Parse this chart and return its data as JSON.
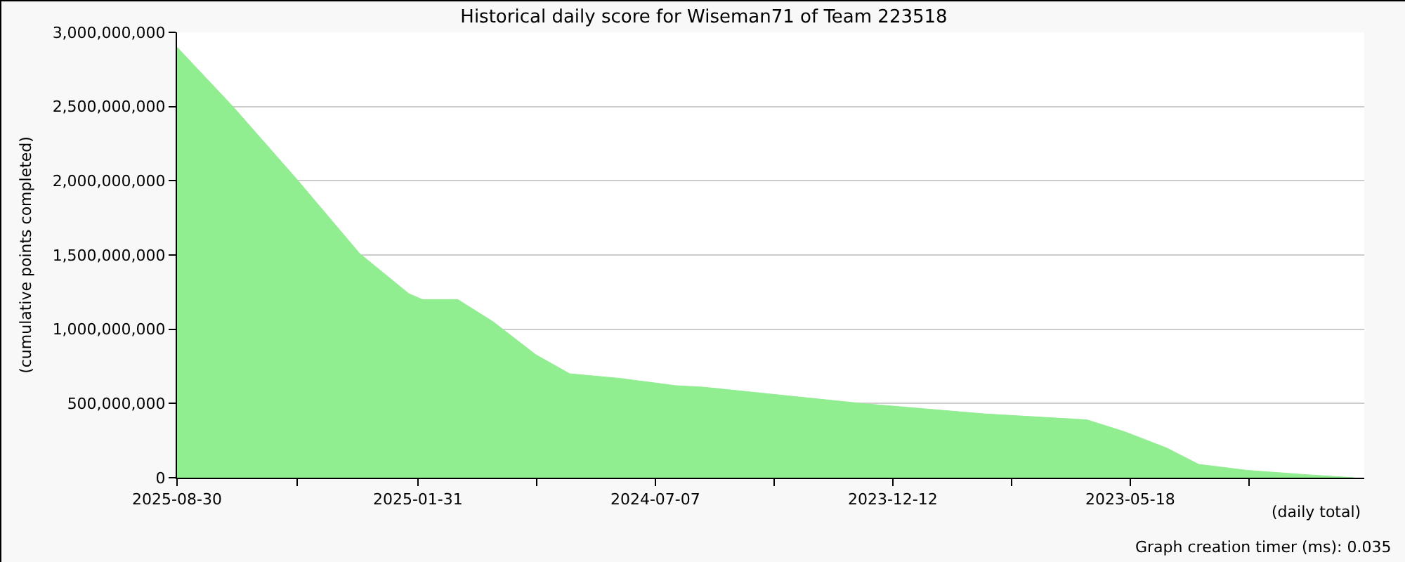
{
  "chart_data": {
    "type": "area",
    "title": "Historical daily score for Wiseman71 of Team 223518",
    "xlabel": "(daily total)",
    "ylabel": "(cumulative points completed)",
    "annotations": [
      "Graph creation timer (ms): 0.035"
    ],
    "x": [
      "2025-08-30",
      "2025-07-12",
      "2025-05-17",
      "2025-03-23",
      "2025-02-08",
      "2025-01-27",
      "2024-12-27",
      "2024-11-26",
      "2024-10-20",
      "2024-09-20",
      "2024-08-08",
      "2024-06-19",
      "2024-05-26",
      "2024-01-08",
      "2023-09-23",
      "2023-06-25",
      "2023-05-23",
      "2023-04-16",
      "2023-03-19",
      "2023-02-05",
      "2022-12-14",
      "2022-11-03"
    ],
    "series": [
      {
        "color": "#90ee90",
        "values": [
          2900000000,
          2500000000,
          2010000000,
          1510000000,
          1240000000,
          1200000000,
          1200000000,
          1050000000,
          830000000,
          700000000,
          670000000,
          620000000,
          610000000,
          500000000,
          430000000,
          390000000,
          310000000,
          200000000,
          90000000,
          50000000,
          20000000,
          0
        ]
      }
    ],
    "xlim": [
      "2025-08-30",
      "2022-10-25"
    ],
    "xticks": [
      {
        "value": "2025-08-30",
        "label": "2025-08-30"
      },
      {
        "value": "2025-05-17",
        "label": null
      },
      {
        "value": "2025-01-31",
        "label": "2025-01-31"
      },
      {
        "value": "2024-10-19",
        "label": null
      },
      {
        "value": "2024-07-07",
        "label": "2024-07-07"
      },
      {
        "value": "2024-03-25",
        "label": null
      },
      {
        "value": "2023-12-12",
        "label": "2023-12-12"
      },
      {
        "value": "2023-08-30",
        "label": null
      },
      {
        "value": "2023-05-18",
        "label": "2023-05-18"
      },
      {
        "value": "2023-02-03",
        "label": null
      }
    ],
    "ylim": [
      0,
      3000000000
    ],
    "yticks": [
      0,
      {
        "value": 500000000,
        "label": "500,000,000"
      },
      {
        "value": 1000000000,
        "label": "1,000,000,000"
      },
      {
        "value": 1500000000,
        "label": "1,500,000,000"
      },
      {
        "value": 2000000000,
        "label": "2,000,000,000"
      },
      {
        "value": 2500000000,
        "label": "2,500,000,000"
      },
      {
        "value": 3000000000,
        "label": "3,000,000,000"
      }
    ],
    "grid": "y"
  }
}
